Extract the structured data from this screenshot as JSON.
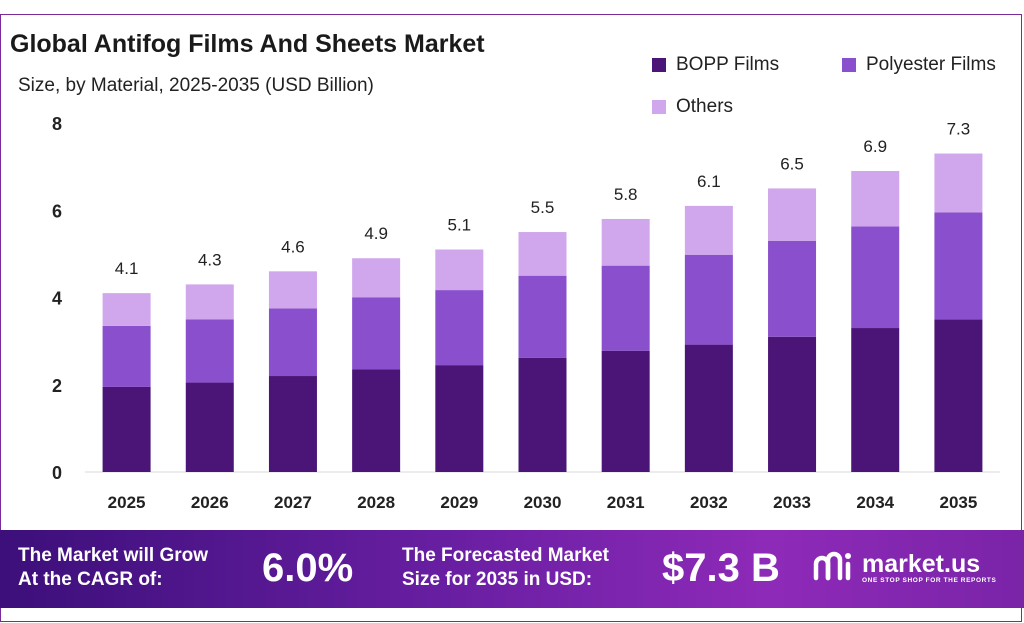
{
  "title": "Global Antifog Films And Sheets Market",
  "subtitle": "Size, by Material, 2025-2035 (USD Billion)",
  "colors": {
    "bopp": "#4a1577",
    "polyester": "#8a4fcc",
    "others": "#d0a6ec",
    "frame": "#7b2a9a"
  },
  "chart_data": {
    "type": "bar",
    "stacked": true,
    "title": "Global Antifog Films And Sheets Market",
    "subtitle": "Size, by Material, 2025-2035 (USD Billion)",
    "categories": [
      "2025",
      "2026",
      "2027",
      "2028",
      "2029",
      "2030",
      "2031",
      "2032",
      "2033",
      "2034",
      "2035"
    ],
    "series": [
      {
        "name": "BOPP Films",
        "values": [
          1.95,
          2.05,
          2.2,
          2.35,
          2.45,
          2.62,
          2.78,
          2.92,
          3.1,
          3.3,
          3.5
        ]
      },
      {
        "name": "Polyester Films",
        "values": [
          1.4,
          1.45,
          1.55,
          1.65,
          1.72,
          1.88,
          1.95,
          2.06,
          2.2,
          2.33,
          2.45
        ]
      },
      {
        "name": "Others",
        "values": [
          0.75,
          0.8,
          0.85,
          0.9,
          0.93,
          1.0,
          1.07,
          1.12,
          1.2,
          1.27,
          1.35
        ]
      }
    ],
    "totals": [
      4.1,
      4.3,
      4.6,
      4.9,
      5.1,
      5.5,
      5.8,
      6.1,
      6.5,
      6.9,
      7.3
    ],
    "total_labels": [
      "4.1",
      "4.3",
      "4.6",
      "4.9",
      "5.1",
      "5.5",
      "5.8",
      "6.1",
      "6.5",
      "6.9",
      "7.3"
    ],
    "yticks": [
      "0",
      "2",
      "4",
      "6",
      "8"
    ],
    "ylim": [
      0,
      8
    ],
    "xlabel": "",
    "ylabel": "",
    "grid": false,
    "legend": "top-right"
  },
  "legend": [
    {
      "label": "BOPP Films",
      "color": "#4a1577"
    },
    {
      "label": "Polyester Films",
      "color": "#8a4fcc"
    },
    {
      "label": "Others",
      "color": "#d0a6ec"
    }
  ],
  "banner": {
    "cagr_text_line1": "The Market will Grow",
    "cagr_text_line2": "At the CAGR of:",
    "cagr_value": "6.0%",
    "forecast_text_line1": "The Forecasted Market",
    "forecast_text_line2": "Size for 2035 in USD:",
    "forecast_value": "$7.3 B",
    "brand_name": "market.us",
    "brand_tagline": "ONE STOP SHOP FOR THE REPORTS"
  }
}
